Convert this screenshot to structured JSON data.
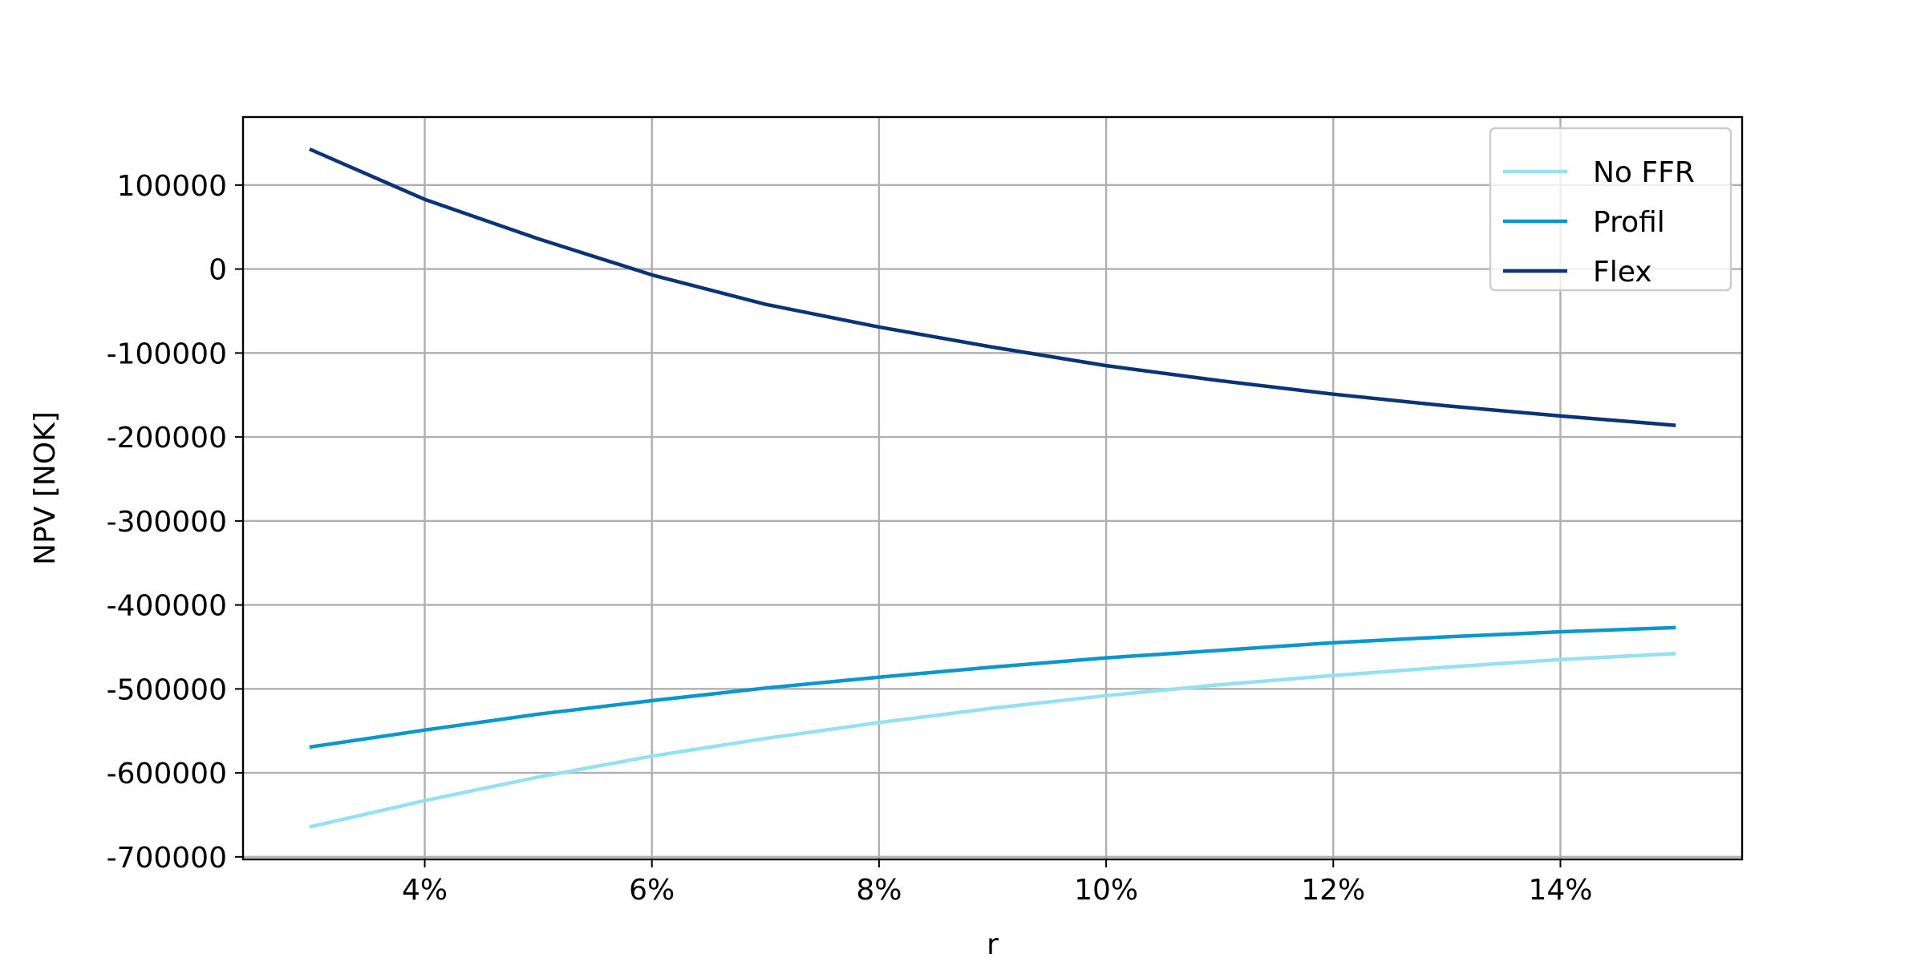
{
  "chart_data": {
    "type": "line",
    "title": "",
    "xlabel": "r",
    "ylabel": "NPV [NOK]",
    "x": [
      0.03,
      0.04,
      0.05,
      0.06,
      0.07,
      0.08,
      0.09,
      0.1,
      0.11,
      0.12,
      0.13,
      0.14,
      0.15
    ],
    "x_ticks": [
      0.04,
      0.06,
      0.08,
      0.1,
      0.12,
      0.14
    ],
    "x_tick_labels": [
      "4%",
      "6%",
      "8%",
      "10%",
      "12%",
      "14%"
    ],
    "xlim": [
      0.024,
      0.156
    ],
    "y_ticks": [
      100000,
      0,
      -100000,
      -200000,
      -300000,
      -400000,
      -500000,
      -600000,
      -700000
    ],
    "y_tick_labels": [
      "100000",
      "0",
      "-100000",
      "-200000",
      "-300000",
      "-400000",
      "-500000",
      "-600000",
      "-700000"
    ],
    "ylim": [
      -703000,
      181000
    ],
    "grid": true,
    "legend_position": "top-right",
    "series": [
      {
        "name": "No FFR",
        "color": "#94e1f2",
        "values": [
          -664000,
          -633000,
          -605000,
          -580000,
          -559000,
          -540000,
          -523000,
          -508000,
          -495000,
          -484000,
          -474000,
          -465000,
          -458000
        ]
      },
      {
        "name": "Profil",
        "color": "#0a97cc",
        "values": [
          -569000,
          -549000,
          -530000,
          -514000,
          -499000,
          -486000,
          -474000,
          -463000,
          -454000,
          -445000,
          -438000,
          -432000,
          -427000
        ]
      },
      {
        "name": "Flex",
        "color": "#0a3476",
        "values": [
          142000,
          83000,
          36000,
          -7000,
          -42000,
          -69000,
          -93000,
          -115000,
          -133000,
          -149000,
          -163000,
          -175000,
          -186000
        ]
      }
    ]
  }
}
